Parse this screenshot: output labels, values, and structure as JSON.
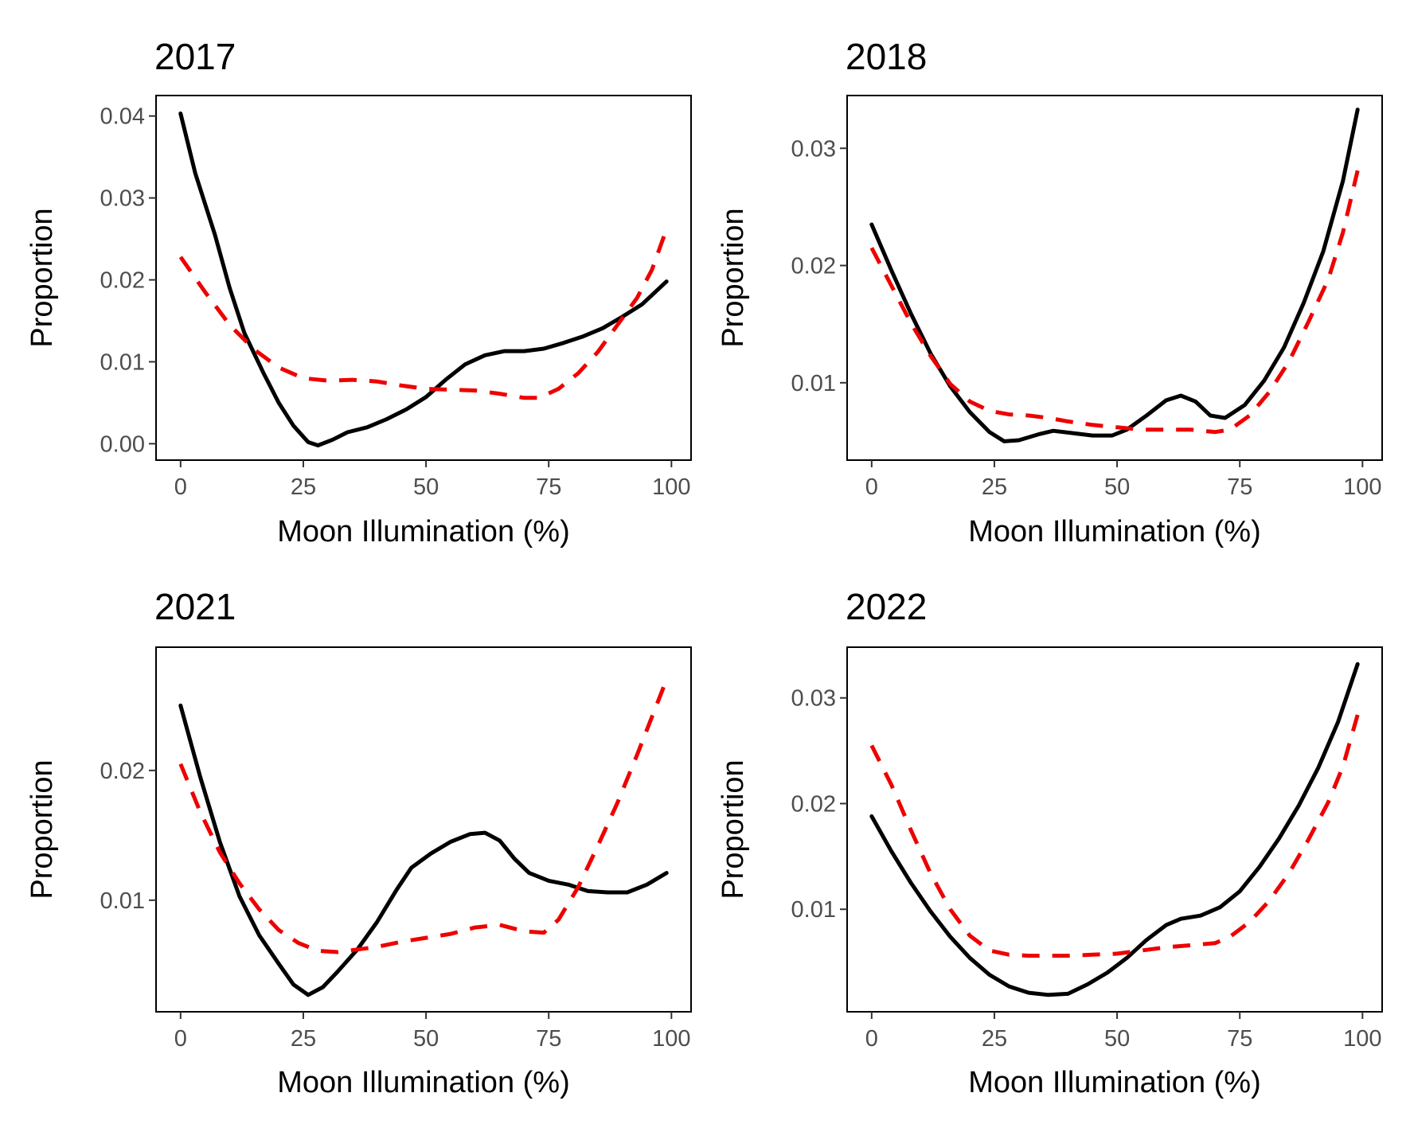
{
  "chart_data": [
    {
      "type": "line",
      "title": "2017",
      "xlabel": "Moon Illumination (%)",
      "ylabel": "Proportion",
      "xlim": [
        -5,
        104
      ],
      "ylim": [
        -0.002,
        0.0425
      ],
      "xticks": [
        0,
        25,
        50,
        75,
        100
      ],
      "xtick_labels": [
        "0",
        "25",
        "50",
        "75",
        "100"
      ],
      "yticks": [
        0,
        0.01,
        0.02,
        0.03,
        0.04
      ],
      "ytick_labels": [
        "0.00",
        "0.01",
        "0.02",
        "0.03",
        "0.04"
      ],
      "grid": false,
      "legend": "none",
      "series": [
        {
          "style": "solid",
          "color": "#000000",
          "points": [
            [
              0,
              0.0403
            ],
            [
              3,
              0.033
            ],
            [
              7,
              0.0255
            ],
            [
              10,
              0.019
            ],
            [
              13,
              0.0135
            ],
            [
              17,
              0.0085
            ],
            [
              20,
              0.005
            ],
            [
              23,
              0.0022
            ],
            [
              26,
              0.0002
            ],
            [
              28,
              -0.0002
            ],
            [
              31,
              0.0005
            ],
            [
              34,
              0.0014
            ],
            [
              38,
              0.002
            ],
            [
              42,
              0.003
            ],
            [
              46,
              0.0042
            ],
            [
              50,
              0.0057
            ],
            [
              54,
              0.0078
            ],
            [
              58,
              0.0097
            ],
            [
              62,
              0.0108
            ],
            [
              66,
              0.0113
            ],
            [
              70,
              0.0113
            ],
            [
              74,
              0.0116
            ],
            [
              78,
              0.0123
            ],
            [
              82,
              0.0131
            ],
            [
              86,
              0.0141
            ],
            [
              90,
              0.0155
            ],
            [
              94,
              0.017
            ],
            [
              99,
              0.0198
            ]
          ]
        },
        {
          "style": "dashed",
          "color": "#ee0000",
          "points": [
            [
              0,
              0.0228
            ],
            [
              5,
              0.0185
            ],
            [
              10,
              0.0145
            ],
            [
              15,
              0.0115
            ],
            [
              20,
              0.0093
            ],
            [
              25,
              0.008
            ],
            [
              30,
              0.0077
            ],
            [
              35,
              0.0078
            ],
            [
              40,
              0.0076
            ],
            [
              45,
              0.0071
            ],
            [
              50,
              0.0067
            ],
            [
              55,
              0.0066
            ],
            [
              60,
              0.0065
            ],
            [
              65,
              0.0061
            ],
            [
              70,
              0.0056
            ],
            [
              73,
              0.0056
            ],
            [
              77,
              0.0067
            ],
            [
              81,
              0.0086
            ],
            [
              85,
              0.0112
            ],
            [
              89,
              0.0145
            ],
            [
              93,
              0.0178
            ],
            [
              96,
              0.0212
            ],
            [
              99,
              0.0262
            ]
          ]
        }
      ]
    },
    {
      "type": "line",
      "title": "2018",
      "xlabel": "Moon Illumination (%)",
      "ylabel": "Proportion",
      "xlim": [
        -5,
        104
      ],
      "ylim": [
        0.0034,
        0.0345
      ],
      "xticks": [
        0,
        25,
        50,
        75,
        100
      ],
      "xtick_labels": [
        "0",
        "25",
        "50",
        "75",
        "100"
      ],
      "yticks": [
        0.01,
        0.02,
        0.03
      ],
      "ytick_labels": [
        "0.01",
        "0.02",
        "0.03"
      ],
      "grid": false,
      "legend": "none",
      "series": [
        {
          "style": "solid",
          "color": "#000000",
          "points": [
            [
              0,
              0.0235
            ],
            [
              4,
              0.0196
            ],
            [
              8,
              0.0159
            ],
            [
              12,
              0.0125
            ],
            [
              16,
              0.0097
            ],
            [
              20,
              0.0075
            ],
            [
              24,
              0.0058
            ],
            [
              27,
              0.005
            ],
            [
              30,
              0.0051
            ],
            [
              34,
              0.0056
            ],
            [
              37,
              0.0059
            ],
            [
              41,
              0.0057
            ],
            [
              45,
              0.0055
            ],
            [
              49,
              0.0055
            ],
            [
              52,
              0.006
            ],
            [
              56,
              0.0072
            ],
            [
              60,
              0.0085
            ],
            [
              63,
              0.0089
            ],
            [
              66,
              0.0084
            ],
            [
              69,
              0.0072
            ],
            [
              72,
              0.007
            ],
            [
              76,
              0.0081
            ],
            [
              80,
              0.0102
            ],
            [
              84,
              0.013
            ],
            [
              88,
              0.0168
            ],
            [
              92,
              0.0212
            ],
            [
              96,
              0.0272
            ],
            [
              99,
              0.0333
            ]
          ]
        },
        {
          "style": "dashed",
          "color": "#ee0000",
          "points": [
            [
              0,
              0.0215
            ],
            [
              4,
              0.0183
            ],
            [
              8,
              0.0151
            ],
            [
              12,
              0.0123
            ],
            [
              16,
              0.0099
            ],
            [
              20,
              0.0084
            ],
            [
              24,
              0.0076
            ],
            [
              28,
              0.0073
            ],
            [
              32,
              0.0072
            ],
            [
              36,
              0.007
            ],
            [
              40,
              0.0067
            ],
            [
              45,
              0.0064
            ],
            [
              50,
              0.0062
            ],
            [
              55,
              0.006
            ],
            [
              60,
              0.006
            ],
            [
              65,
              0.006
            ],
            [
              70,
              0.0058
            ],
            [
              73,
              0.006
            ],
            [
              77,
              0.0072
            ],
            [
              81,
              0.0092
            ],
            [
              85,
              0.0118
            ],
            [
              89,
              0.0152
            ],
            [
              93,
              0.0188
            ],
            [
              96,
              0.0228
            ],
            [
              99,
              0.0281
            ]
          ]
        }
      ]
    },
    {
      "type": "line",
      "title": "2021",
      "xlabel": "Moon Illumination (%)",
      "ylabel": "Proportion",
      "xlim": [
        -5,
        104
      ],
      "ylim": [
        0.0014,
        0.0295
      ],
      "xticks": [
        0,
        25,
        50,
        75,
        100
      ],
      "xtick_labels": [
        "0",
        "25",
        "50",
        "75",
        "100"
      ],
      "yticks": [
        0.01,
        0.02
      ],
      "ytick_labels": [
        "0.01",
        "0.02"
      ],
      "grid": false,
      "legend": "none",
      "series": [
        {
          "style": "solid",
          "color": "#000000",
          "points": [
            [
              0,
              0.025
            ],
            [
              4,
              0.0195
            ],
            [
              8,
              0.0145
            ],
            [
              12,
              0.0103
            ],
            [
              16,
              0.0073
            ],
            [
              20,
              0.0051
            ],
            [
              23,
              0.0035
            ],
            [
              26,
              0.0027
            ],
            [
              29,
              0.0033
            ],
            [
              32,
              0.0045
            ],
            [
              36,
              0.0062
            ],
            [
              40,
              0.0083
            ],
            [
              44,
              0.0108
            ],
            [
              47,
              0.0125
            ],
            [
              51,
              0.0136
            ],
            [
              55,
              0.0145
            ],
            [
              59,
              0.0151
            ],
            [
              62,
              0.0152
            ],
            [
              65,
              0.0146
            ],
            [
              68,
              0.0132
            ],
            [
              71,
              0.0121
            ],
            [
              75,
              0.0115
            ],
            [
              79,
              0.0112
            ],
            [
              83,
              0.0107
            ],
            [
              87,
              0.0106
            ],
            [
              91,
              0.0106
            ],
            [
              95,
              0.0112
            ],
            [
              99,
              0.0121
            ]
          ]
        },
        {
          "style": "dashed",
          "color": "#ee0000",
          "points": [
            [
              0,
              0.0205
            ],
            [
              4,
              0.0168
            ],
            [
              8,
              0.0137
            ],
            [
              12,
              0.0113
            ],
            [
              16,
              0.0093
            ],
            [
              20,
              0.0077
            ],
            [
              24,
              0.0067
            ],
            [
              28,
              0.0061
            ],
            [
              32,
              0.006
            ],
            [
              36,
              0.0062
            ],
            [
              40,
              0.0064
            ],
            [
              45,
              0.0068
            ],
            [
              50,
              0.0071
            ],
            [
              55,
              0.0074
            ],
            [
              60,
              0.0079
            ],
            [
              65,
              0.0081
            ],
            [
              70,
              0.0076
            ],
            [
              74,
              0.0075
            ],
            [
              77,
              0.0085
            ],
            [
              81,
              0.011
            ],
            [
              85,
              0.0142
            ],
            [
              89,
              0.0175
            ],
            [
              93,
              0.0212
            ],
            [
              96,
              0.0241
            ],
            [
              99,
              0.027
            ]
          ]
        }
      ]
    },
    {
      "type": "line",
      "title": "2022",
      "xlabel": "Moon Illumination (%)",
      "ylabel": "Proportion",
      "xlim": [
        -5,
        104
      ],
      "ylim": [
        0.0003,
        0.0348
      ],
      "xticks": [
        0,
        25,
        50,
        75,
        100
      ],
      "xtick_labels": [
        "0",
        "25",
        "50",
        "75",
        "100"
      ],
      "yticks": [
        0.01,
        0.02,
        0.03
      ],
      "ytick_labels": [
        "0.01",
        "0.02",
        "0.03"
      ],
      "grid": false,
      "legend": "none",
      "series": [
        {
          "style": "solid",
          "color": "#000000",
          "points": [
            [
              0,
              0.0188
            ],
            [
              4,
              0.0155
            ],
            [
              8,
              0.0125
            ],
            [
              12,
              0.0098
            ],
            [
              16,
              0.0074
            ],
            [
              20,
              0.0054
            ],
            [
              24,
              0.0038
            ],
            [
              28,
              0.0027
            ],
            [
              32,
              0.0021
            ],
            [
              36,
              0.0019
            ],
            [
              40,
              0.002
            ],
            [
              44,
              0.0029
            ],
            [
              48,
              0.004
            ],
            [
              52,
              0.0054
            ],
            [
              56,
              0.0071
            ],
            [
              60,
              0.0085
            ],
            [
              63,
              0.0091
            ],
            [
              67,
              0.0094
            ],
            [
              71,
              0.0102
            ],
            [
              75,
              0.0117
            ],
            [
              79,
              0.014
            ],
            [
              83,
              0.0167
            ],
            [
              87,
              0.0198
            ],
            [
              91,
              0.0234
            ],
            [
              95,
              0.0277
            ],
            [
              99,
              0.0332
            ]
          ]
        },
        {
          "style": "dashed",
          "color": "#ee0000",
          "points": [
            [
              0,
              0.0255
            ],
            [
              4,
              0.0218
            ],
            [
              8,
              0.0175
            ],
            [
              12,
              0.0134
            ],
            [
              16,
              0.01
            ],
            [
              20,
              0.0075
            ],
            [
              24,
              0.0061
            ],
            [
              28,
              0.0057
            ],
            [
              32,
              0.0056
            ],
            [
              36,
              0.0056
            ],
            [
              40,
              0.0056
            ],
            [
              45,
              0.0057
            ],
            [
              50,
              0.0058
            ],
            [
              55,
              0.0061
            ],
            [
              60,
              0.0064
            ],
            [
              65,
              0.0066
            ],
            [
              70,
              0.0068
            ],
            [
              73,
              0.0074
            ],
            [
              77,
              0.0088
            ],
            [
              81,
              0.0108
            ],
            [
              85,
              0.0134
            ],
            [
              89,
              0.0166
            ],
            [
              93,
              0.0201
            ],
            [
              96,
              0.0235
            ],
            [
              99,
              0.0284
            ]
          ]
        }
      ]
    }
  ]
}
